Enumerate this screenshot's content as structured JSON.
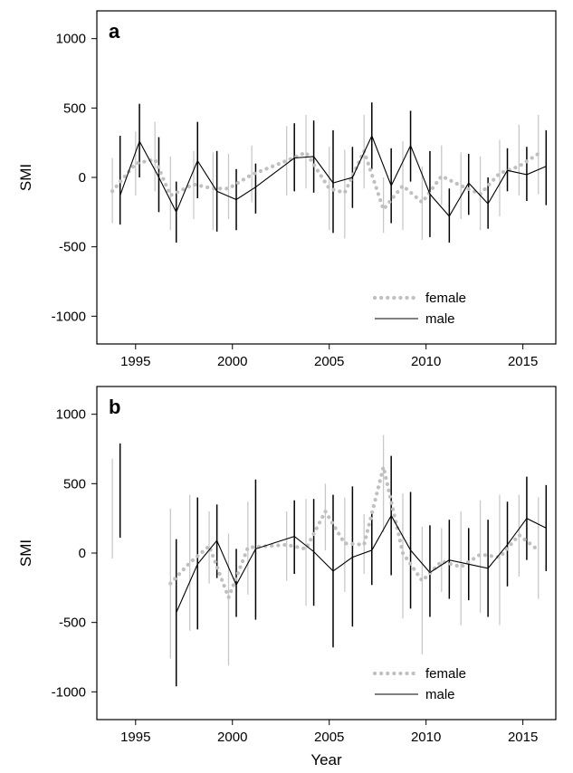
{
  "chart_data": [
    {
      "panel_label": "a",
      "type": "line",
      "xlabel": "",
      "ylabel": "SMI",
      "xlim": [
        1993.0,
        2016.7
      ],
      "ylim": [
        -1200,
        1200
      ],
      "xticks": [
        "1995",
        "2000",
        "2005",
        "2010",
        "2015"
      ],
      "yticks": [
        "-1000",
        "-500",
        "0",
        "500",
        "1000"
      ],
      "legend": {
        "position": "bottom-right",
        "entries": [
          "female",
          "male"
        ]
      },
      "series": [
        {
          "name": "female",
          "style": "dotted",
          "color": "#c0c0c0",
          "points": [
            {
              "x": 1993.8,
              "y": -100,
              "lo": -330,
              "hi": 140
            },
            {
              "x": 1995.0,
              "y": 100,
              "lo": -130,
              "hi": 330
            },
            {
              "x": 1996.0,
              "y": 130,
              "lo": -100,
              "hi": 400
            },
            {
              "x": 1996.8,
              "y": -130,
              "lo": -380,
              "hi": 150
            },
            {
              "x": 1998.0,
              "y": -50,
              "lo": -300,
              "hi": 190
            },
            {
              "x": 1999.0,
              "y": -80,
              "lo": -380,
              "hi": 180
            },
            {
              "x": 1999.8,
              "y": -80,
              "lo": -300,
              "hi": 170
            },
            {
              "x": 2001.0,
              "y": 20,
              "lo": -180,
              "hi": 230
            },
            {
              "x": 2002.8,
              "y": 120,
              "lo": -130,
              "hi": 370
            },
            {
              "x": 2003.8,
              "y": 180,
              "lo": -80,
              "hi": 450
            },
            {
              "x": 2005.0,
              "y": -80,
              "lo": -380,
              "hi": 220
            },
            {
              "x": 2005.8,
              "y": -110,
              "lo": -440,
              "hi": 200
            },
            {
              "x": 2006.8,
              "y": 190,
              "lo": -80,
              "hi": 450
            },
            {
              "x": 2007.8,
              "y": -230,
              "lo": -400,
              "hi": 0
            },
            {
              "x": 2008.8,
              "y": -60,
              "lo": -380,
              "hi": 260
            },
            {
              "x": 2009.8,
              "y": -180,
              "lo": -450,
              "hi": 80
            },
            {
              "x": 2010.8,
              "y": 10,
              "lo": -200,
              "hi": 230
            },
            {
              "x": 2011.8,
              "y": -60,
              "lo": -300,
              "hi": 180
            },
            {
              "x": 2012.8,
              "y": -120,
              "lo": -380,
              "hi": 150
            },
            {
              "x": 2013.8,
              "y": 30,
              "lo": -280,
              "hi": 270
            },
            {
              "x": 2014.8,
              "y": 80,
              "lo": -130,
              "hi": 380
            },
            {
              "x": 2015.8,
              "y": 170,
              "lo": -120,
              "hi": 450
            }
          ]
        },
        {
          "name": "male",
          "style": "solid",
          "color": "#000000",
          "points": [
            {
              "x": 1994.2,
              "y": -130,
              "lo": -340,
              "hi": 300
            },
            {
              "x": 1995.2,
              "y": 260,
              "lo": 0,
              "hi": 530
            },
            {
              "x": 1996.2,
              "y": 0,
              "lo": -250,
              "hi": 290
            },
            {
              "x": 1997.1,
              "y": -250,
              "lo": -470,
              "hi": -30
            },
            {
              "x": 1998.2,
              "y": 120,
              "lo": -150,
              "hi": 400
            },
            {
              "x": 1999.2,
              "y": -100,
              "lo": -390,
              "hi": 190
            },
            {
              "x": 2000.2,
              "y": -160,
              "lo": -380,
              "hi": 60
            },
            {
              "x": 2001.2,
              "y": -70,
              "lo": -260,
              "hi": 100
            },
            {
              "x": 2003.2,
              "y": 140,
              "lo": -100,
              "hi": 390
            },
            {
              "x": 2004.2,
              "y": 150,
              "lo": -110,
              "hi": 410
            },
            {
              "x": 2005.2,
              "y": -40,
              "lo": -400,
              "hi": 340
            },
            {
              "x": 2006.2,
              "y": 0,
              "lo": -220,
              "hi": 220
            },
            {
              "x": 2007.2,
              "y": 300,
              "lo": 60,
              "hi": 540
            },
            {
              "x": 2008.2,
              "y": -60,
              "lo": -330,
              "hi": 210
            },
            {
              "x": 2009.2,
              "y": 230,
              "lo": -30,
              "hi": 480
            },
            {
              "x": 2010.2,
              "y": -120,
              "lo": -430,
              "hi": 190
            },
            {
              "x": 2011.2,
              "y": -280,
              "lo": -470,
              "hi": -80
            },
            {
              "x": 2012.2,
              "y": -40,
              "lo": -270,
              "hi": 170
            },
            {
              "x": 2013.2,
              "y": -190,
              "lo": -370,
              "hi": 0
            },
            {
              "x": 2014.2,
              "y": 50,
              "lo": -100,
              "hi": 210
            },
            {
              "x": 2015.2,
              "y": 20,
              "lo": -170,
              "hi": 220
            },
            {
              "x": 2016.2,
              "y": 80,
              "lo": -200,
              "hi": 340
            }
          ]
        }
      ]
    },
    {
      "panel_label": "b",
      "type": "line",
      "xlabel": "Year",
      "ylabel": "SMI",
      "xlim": [
        1993.0,
        2016.7
      ],
      "ylim": [
        -1200,
        1200
      ],
      "xticks": [
        "1995",
        "2000",
        "2005",
        "2010",
        "2015"
      ],
      "yticks": [
        "-1000",
        "-500",
        "0",
        "500",
        "1000"
      ],
      "legend": {
        "position": "bottom-right",
        "entries": [
          "female",
          "male"
        ]
      },
      "series": [
        {
          "name": "female",
          "style": "dotted",
          "color": "#c0c0c0",
          "points": [
            {
              "x": 1993.8,
              "y": null,
              "lo": -40,
              "hi": 680
            },
            {
              "x": 1996.8,
              "y": -220,
              "lo": -760,
              "hi": 320
            },
            {
              "x": 1997.8,
              "y": -70,
              "lo": -560,
              "hi": 420
            },
            {
              "x": 1998.8,
              "y": 50,
              "lo": -220,
              "hi": 300
            },
            {
              "x": 1999.8,
              "y": -320,
              "lo": -810,
              "hi": 140
            },
            {
              "x": 2000.8,
              "y": 40,
              "lo": -300,
              "hi": 370
            },
            {
              "x": 2002.8,
              "y": 60,
              "lo": -200,
              "hi": 300
            },
            {
              "x": 2003.8,
              "y": 30,
              "lo": -380,
              "hi": 390
            },
            {
              "x": 2004.8,
              "y": 300,
              "lo": 20,
              "hi": 500
            },
            {
              "x": 2005.8,
              "y": 70,
              "lo": -280,
              "hi": 400
            },
            {
              "x": 2006.8,
              "y": 60,
              "lo": -150,
              "hi": 280
            },
            {
              "x": 2007.8,
              "y": 620,
              "lo": 150,
              "hi": 850
            },
            {
              "x": 2008.8,
              "y": 0,
              "lo": -470,
              "hi": 430
            },
            {
              "x": 2009.8,
              "y": -200,
              "lo": -730,
              "hi": 190
            },
            {
              "x": 2010.8,
              "y": -60,
              "lo": -280,
              "hi": 180
            },
            {
              "x": 2011.8,
              "y": -100,
              "lo": -520,
              "hi": 300
            },
            {
              "x": 2012.8,
              "y": -10,
              "lo": -430,
              "hi": 380
            },
            {
              "x": 2013.8,
              "y": -30,
              "lo": -520,
              "hi": 420
            },
            {
              "x": 2014.8,
              "y": 130,
              "lo": -170,
              "hi": 420
            },
            {
              "x": 2015.8,
              "y": 20,
              "lo": -330,
              "hi": 400
            }
          ]
        },
        {
          "name": "male",
          "style": "solid",
          "color": "#000000",
          "points": [
            {
              "x": 1994.2,
              "y": null,
              "lo": 110,
              "hi": 790
            },
            {
              "x": 1997.1,
              "y": -430,
              "lo": -960,
              "hi": 100
            },
            {
              "x": 1998.2,
              "y": -80,
              "lo": -550,
              "hi": 400
            },
            {
              "x": 1999.2,
              "y": 90,
              "lo": -180,
              "hi": 350
            },
            {
              "x": 2000.2,
              "y": -230,
              "lo": -460,
              "hi": 30
            },
            {
              "x": 2001.2,
              "y": 30,
              "lo": -480,
              "hi": 530
            },
            {
              "x": 2003.2,
              "y": 120,
              "lo": -150,
              "hi": 380
            },
            {
              "x": 2004.2,
              "y": 10,
              "lo": -380,
              "hi": 390
            },
            {
              "x": 2005.2,
              "y": -130,
              "lo": -680,
              "hi": 420
            },
            {
              "x": 2006.2,
              "y": -30,
              "lo": -530,
              "hi": 480
            },
            {
              "x": 2007.2,
              "y": 20,
              "lo": -230,
              "hi": 290
            },
            {
              "x": 2008.2,
              "y": 270,
              "lo": -160,
              "hi": 700
            },
            {
              "x": 2009.2,
              "y": 20,
              "lo": -400,
              "hi": 440
            },
            {
              "x": 2010.2,
              "y": -140,
              "lo": -460,
              "hi": 200
            },
            {
              "x": 2011.2,
              "y": -50,
              "lo": -330,
              "hi": 240
            },
            {
              "x": 2012.2,
              "y": -80,
              "lo": -340,
              "hi": 180
            },
            {
              "x": 2013.2,
              "y": -110,
              "lo": -460,
              "hi": 240
            },
            {
              "x": 2014.2,
              "y": 60,
              "lo": -240,
              "hi": 370
            },
            {
              "x": 2015.2,
              "y": 250,
              "lo": -50,
              "hi": 550
            },
            {
              "x": 2016.2,
              "y": 180,
              "lo": -130,
              "hi": 490
            }
          ]
        }
      ]
    }
  ]
}
